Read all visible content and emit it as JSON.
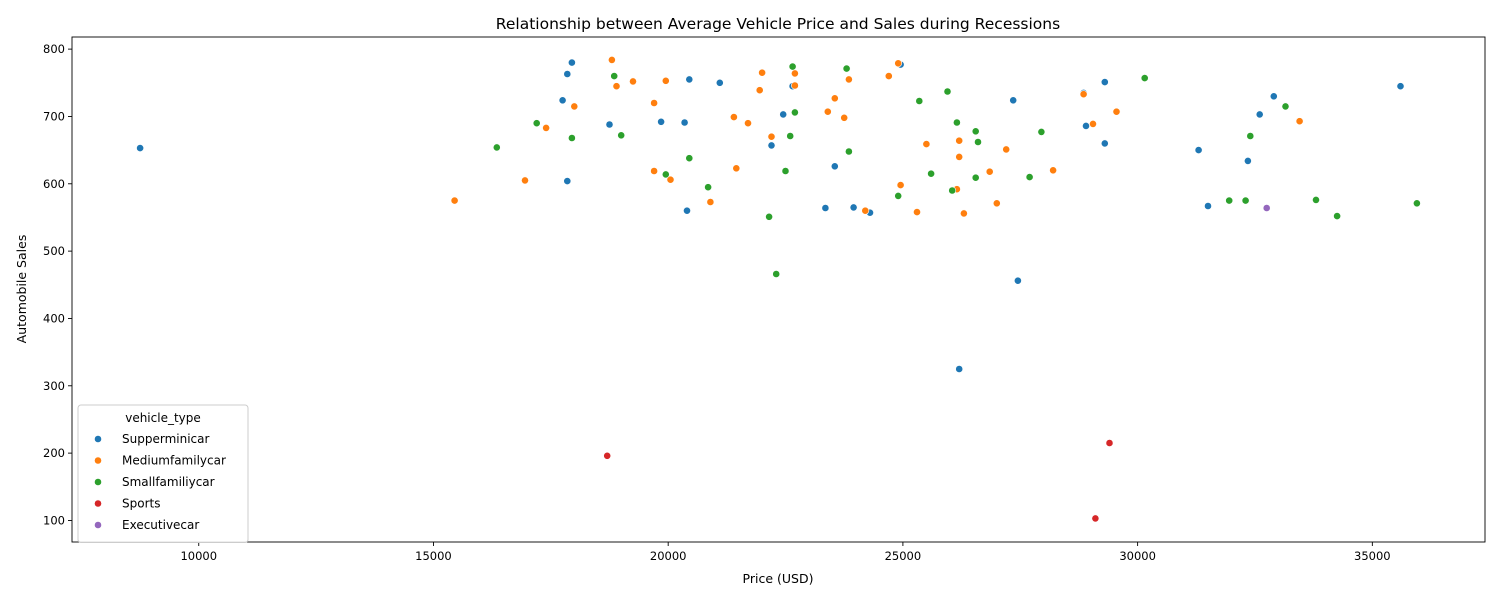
{
  "chart_data": {
    "type": "scatter",
    "title": "Relationship between Average Vehicle Price and Sales during Recessions",
    "xlabel": "Price (USD)",
    "ylabel": "Automobile Sales",
    "xlim": [
      7300,
      37400
    ],
    "ylim": [
      68,
      818
    ],
    "xticks": [
      10000,
      15000,
      20000,
      25000,
      30000,
      35000
    ],
    "xtick_labels": [
      "10000",
      "15000",
      "20000",
      "25000",
      "30000",
      "35000"
    ],
    "yticks": [
      100,
      200,
      300,
      400,
      500,
      600,
      700,
      800
    ],
    "ytick_labels": [
      "100",
      "200",
      "300",
      "400",
      "500",
      "600",
      "700",
      "800"
    ],
    "grid": false,
    "legend": {
      "title": "vehicle_type",
      "placement": "lower-left"
    },
    "series": [
      {
        "name": "Supperminicar",
        "color": "#1f77b4",
        "points": [
          [
            8750,
            653
          ],
          [
            17750,
            724
          ],
          [
            17850,
            763
          ],
          [
            17950,
            780
          ],
          [
            17850,
            604
          ],
          [
            18750,
            688
          ],
          [
            19850,
            692
          ],
          [
            20350,
            691
          ],
          [
            20450,
            755
          ],
          [
            21100,
            750
          ],
          [
            20400,
            560
          ],
          [
            22200,
            657
          ],
          [
            22450,
            703
          ],
          [
            22650,
            745
          ],
          [
            23550,
            626
          ],
          [
            23350,
            564
          ],
          [
            23950,
            565
          ],
          [
            24300,
            557
          ],
          [
            24950,
            777
          ],
          [
            26200,
            325
          ],
          [
            27350,
            724
          ],
          [
            27450,
            456
          ],
          [
            28850,
            735
          ],
          [
            28900,
            686
          ],
          [
            29300,
            660
          ],
          [
            29300,
            751
          ],
          [
            31300,
            650
          ],
          [
            31500,
            567
          ],
          [
            32350,
            634
          ],
          [
            32600,
            703
          ],
          [
            32900,
            730
          ],
          [
            35600,
            745
          ]
        ]
      },
      {
        "name": "Mediumfamilycar",
        "color": "#ff7f0e",
        "points": [
          [
            15450,
            575
          ],
          [
            16950,
            605
          ],
          [
            17400,
            683
          ],
          [
            18000,
            715
          ],
          [
            18800,
            784
          ],
          [
            18900,
            745
          ],
          [
            19250,
            752
          ],
          [
            19700,
            720
          ],
          [
            19700,
            619
          ],
          [
            19950,
            753
          ],
          [
            20050,
            606
          ],
          [
            20900,
            573
          ],
          [
            21400,
            699
          ],
          [
            21450,
            623
          ],
          [
            21700,
            690
          ],
          [
            21950,
            739
          ],
          [
            22000,
            765
          ],
          [
            22200,
            670
          ],
          [
            22700,
            764
          ],
          [
            22700,
            746
          ],
          [
            23400,
            707
          ],
          [
            23550,
            727
          ],
          [
            23750,
            698
          ],
          [
            23850,
            755
          ],
          [
            24200,
            560
          ],
          [
            24700,
            760
          ],
          [
            24900,
            779
          ],
          [
            24950,
            598
          ],
          [
            25300,
            558
          ],
          [
            25500,
            659
          ],
          [
            26150,
            592
          ],
          [
            26200,
            664
          ],
          [
            26200,
            640
          ],
          [
            26300,
            556
          ],
          [
            26850,
            618
          ],
          [
            27000,
            571
          ],
          [
            27200,
            651
          ],
          [
            28850,
            733
          ],
          [
            29050,
            689
          ],
          [
            29550,
            707
          ],
          [
            28200,
            620
          ],
          [
            33450,
            693
          ]
        ]
      },
      {
        "name": "Smallfamiliycar",
        "color": "#2ca02c",
        "points": [
          [
            16350,
            654
          ],
          [
            17200,
            690
          ],
          [
            17950,
            668
          ],
          [
            18850,
            760
          ],
          [
            19000,
            672
          ],
          [
            19950,
            614
          ],
          [
            20450,
            638
          ],
          [
            20850,
            595
          ],
          [
            22150,
            551
          ],
          [
            22300,
            466
          ],
          [
            22500,
            619
          ],
          [
            22600,
            671
          ],
          [
            22650,
            774
          ],
          [
            22700,
            706
          ],
          [
            23800,
            771
          ],
          [
            23850,
            648
          ],
          [
            24900,
            582
          ],
          [
            25350,
            723
          ],
          [
            25600,
            615
          ],
          [
            25950,
            737
          ],
          [
            26050,
            590
          ],
          [
            26150,
            691
          ],
          [
            26550,
            609
          ],
          [
            26550,
            678
          ],
          [
            26600,
            662
          ],
          [
            27700,
            610
          ],
          [
            27950,
            677
          ],
          [
            30150,
            757
          ],
          [
            31950,
            575
          ],
          [
            32300,
            575
          ],
          [
            32400,
            671
          ],
          [
            33150,
            715
          ],
          [
            33800,
            576
          ],
          [
            34250,
            552
          ],
          [
            35950,
            571
          ]
        ]
      },
      {
        "name": "Sports",
        "color": "#d62728",
        "points": [
          [
            18700,
            196
          ],
          [
            29100,
            103
          ],
          [
            29400,
            215
          ]
        ]
      },
      {
        "name": "Executivecar",
        "color": "#9467bd",
        "points": [
          [
            32750,
            564
          ]
        ]
      }
    ]
  }
}
